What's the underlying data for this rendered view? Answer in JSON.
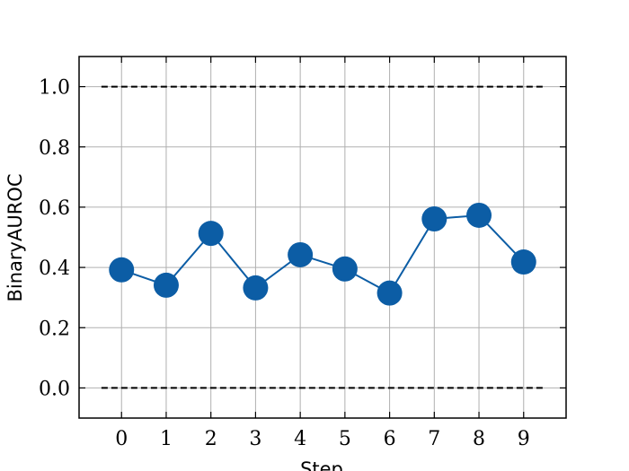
{
  "chart_data": {
    "type": "line",
    "x_label": "Step",
    "y_label": "BinaryAUROC",
    "x": [
      0,
      1,
      2,
      3,
      4,
      5,
      6,
      7,
      8,
      9
    ],
    "series": [
      {
        "color": "#0c5da5",
        "values": [
          0.392,
          0.341,
          0.513,
          0.332,
          0.442,
          0.395,
          0.315,
          0.561,
          0.573,
          0.418
        ]
      }
    ],
    "xlim": [
      -0.95,
      9.95
    ],
    "ylim": [
      -0.1,
      1.1
    ],
    "xticks": [
      0,
      1,
      2,
      3,
      4,
      5,
      6,
      7,
      8,
      9
    ],
    "yticks": [
      {
        "value": 0,
        "label": "0.0"
      },
      {
        "value": 0.2,
        "label": "0.2"
      },
      {
        "value": 0.4,
        "label": "0.4"
      },
      {
        "value": 0.6,
        "label": "0.6"
      },
      {
        "value": 0.8,
        "label": "0.8"
      },
      {
        "value": 1,
        "label": "1.0"
      }
    ],
    "reference_lines": [
      {
        "y": 0,
        "xmin": -0.45,
        "xmax": 9.45,
        "color": "#000000"
      },
      {
        "y": 1,
        "xmin": -0.45,
        "xmax": 9.45,
        "color": "#000000"
      }
    ],
    "grid": true
  }
}
